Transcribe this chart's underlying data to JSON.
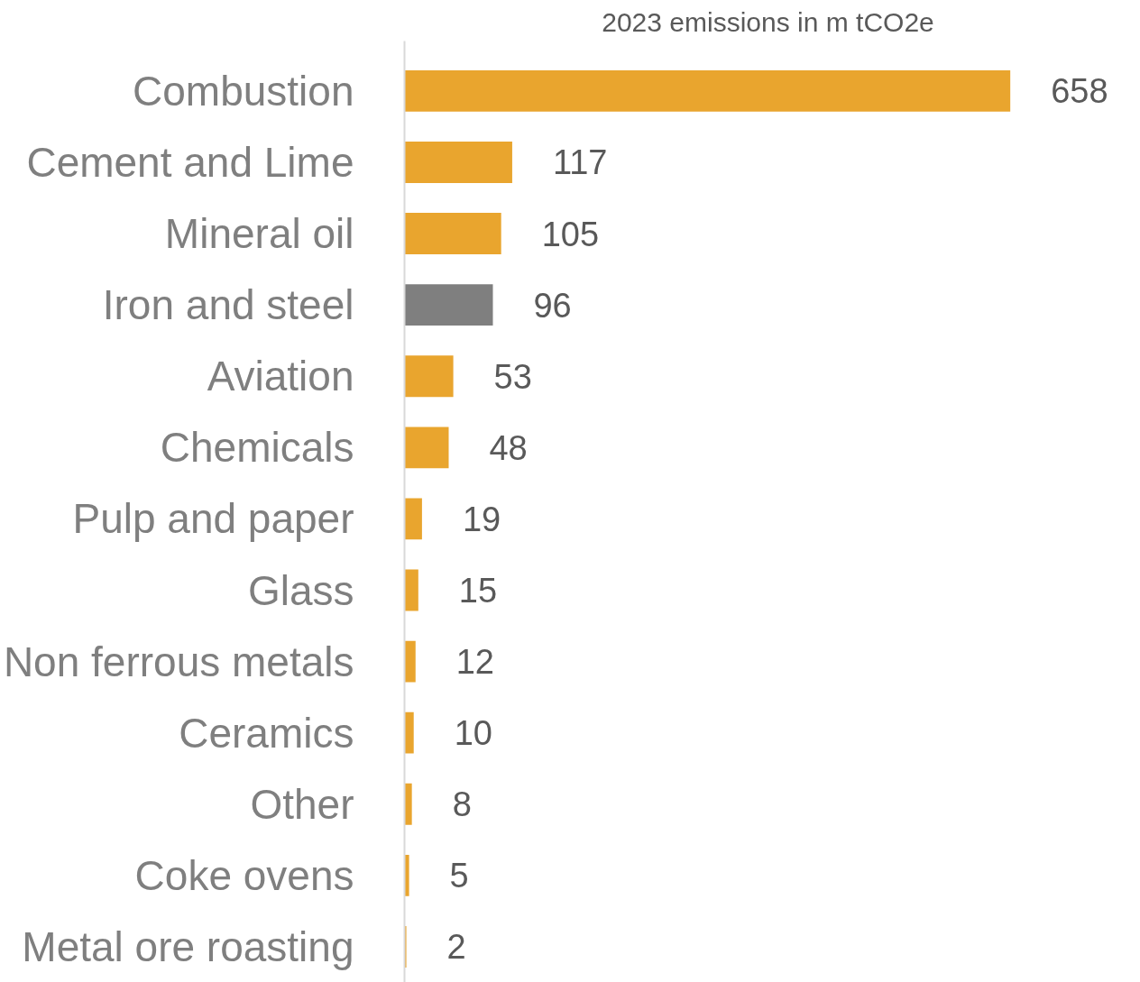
{
  "chart_data": {
    "type": "bar",
    "orientation": "horizontal",
    "title": "2023 emissions in m tCO2e",
    "categories": [
      "Combustion",
      "Cement and Lime",
      "Mineral oil",
      "Iron and steel",
      "Aviation",
      "Chemicals",
      "Pulp and paper",
      "Glass",
      "Non ferrous metals",
      "Ceramics",
      "Other",
      "Coke ovens",
      "Metal ore roasting"
    ],
    "values": [
      658,
      117,
      105,
      96,
      53,
      48,
      19,
      15,
      12,
      10,
      8,
      5,
      2
    ],
    "colors": [
      "#e9a52e",
      "#e9a52e",
      "#e9a52e",
      "#7f7f7f",
      "#e9a52e",
      "#e9a52e",
      "#e9a52e",
      "#e9a52e",
      "#e9a52e",
      "#e9a52e",
      "#e9a52e",
      "#e9a52e",
      "#e9a52e"
    ],
    "data_labels": true,
    "grid": false
  }
}
